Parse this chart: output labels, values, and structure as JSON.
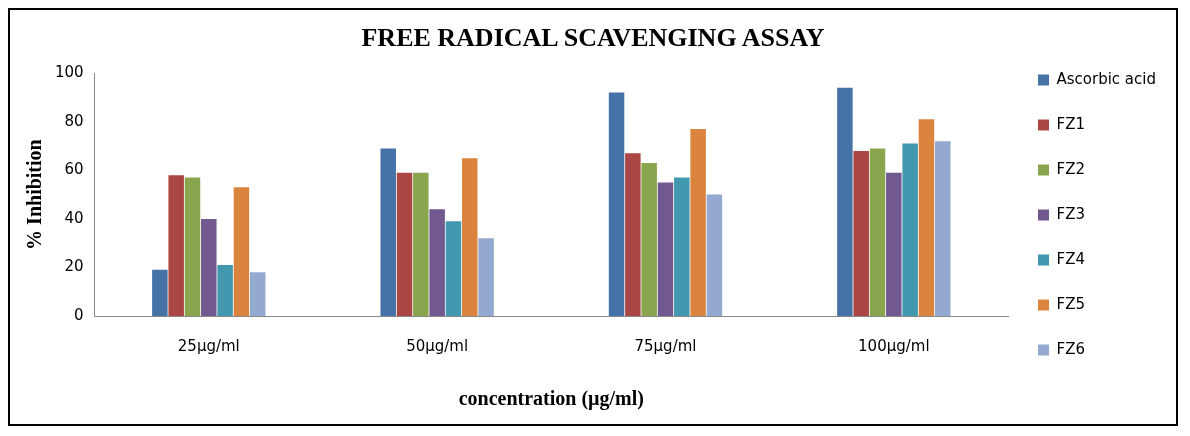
{
  "chart_data": {
    "type": "bar",
    "title": "FREE RADICAL SCAVENGING ASSAY",
    "xlabel": "concentration (µg/ml)",
    "ylabel": "% Inhibition",
    "categories": [
      "25µg/ml",
      "50µg/ml",
      "75µg/ml",
      "100µg/ml"
    ],
    "series": [
      {
        "name": "Ascorbic acid",
        "color": "#4572a7",
        "values": [
          19,
          69,
          92,
          94
        ]
      },
      {
        "name": "FZ1",
        "color": "#aa4643",
        "values": [
          58,
          59,
          67,
          68
        ]
      },
      {
        "name": "FZ2",
        "color": "#89a54e",
        "values": [
          57,
          59,
          63,
          69
        ]
      },
      {
        "name": "FZ3",
        "color": "#71588f",
        "values": [
          40,
          44,
          55,
          59
        ]
      },
      {
        "name": "FZ4",
        "color": "#4198af",
        "values": [
          21,
          39,
          57,
          71
        ]
      },
      {
        "name": "FZ5",
        "color": "#db843d",
        "values": [
          53,
          65,
          77,
          81
        ]
      },
      {
        "name": "FZ6",
        "color": "#93a9cf",
        "values": [
          18,
          32,
          50,
          72
        ]
      }
    ],
    "ylim": [
      0,
      100
    ],
    "yticks": [
      0,
      20,
      40,
      60,
      80,
      100
    ],
    "grid": false,
    "legend": "right"
  }
}
